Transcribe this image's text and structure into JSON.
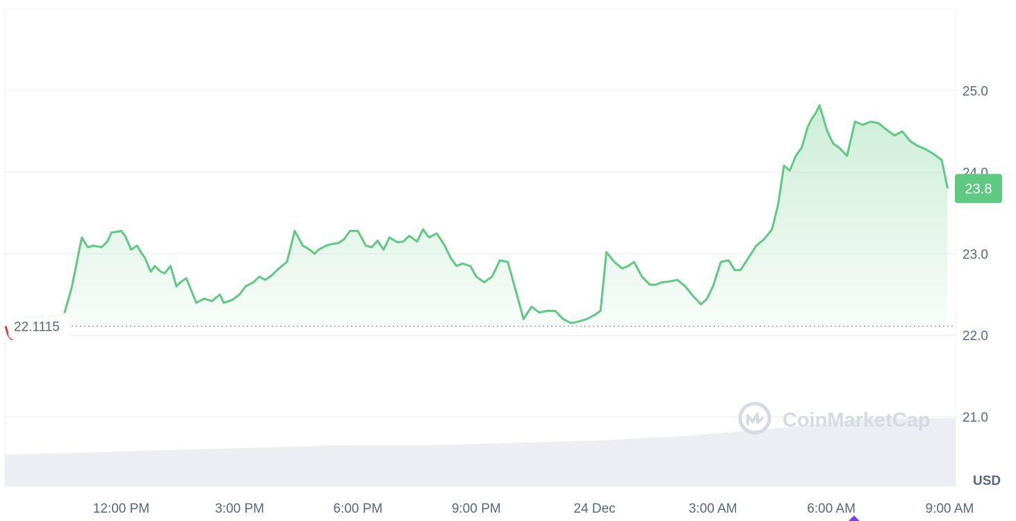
{
  "colors": {
    "up": "#5fc882",
    "down": "#ea3943",
    "grid": "#eff2f5",
    "volume": "#eceef3",
    "text": "#58667e",
    "badge": "#5fc882",
    "marker": "#7b3fe4"
  },
  "labels": {
    "currency": "USD",
    "open_value": "22.1115",
    "current_value": "23.8",
    "watermark": "CoinMarketCap"
  },
  "icons": {
    "watermark": "coinmarketcap-logo-icon",
    "marker": "event-diamond-icon"
  },
  "chart_data": {
    "type": "area",
    "title": "",
    "xlabel": "",
    "ylabel": "",
    "ylim": [
      20.15,
      26.0
    ],
    "yticks": [
      21.0,
      22.0,
      23.0,
      24.0,
      25.0
    ],
    "ytick_labels": [
      "21.0",
      "22.0",
      "23.0",
      "24.0",
      "25.0"
    ],
    "xrange": [
      -1.95,
      22.15
    ],
    "xticks": [
      1.0,
      4.0,
      7.0,
      10.0,
      13.0,
      16.0,
      19.0,
      22.0
    ],
    "xtick_labels": [
      "12:00 PM",
      "3:00 PM",
      "6:00 PM",
      "9:00 PM",
      "24 Dec",
      "3:00 AM",
      "6:00 AM",
      "9:00 AM"
    ],
    "open_price": 22.1115,
    "current_price": 23.8,
    "grid": true,
    "series": [
      {
        "hours": [
          -1.5,
          -0.45,
          -0.25,
          0.0,
          0.15,
          0.3,
          0.5,
          0.65,
          0.75,
          0.9,
          1.0,
          1.1,
          1.25,
          1.4,
          1.5,
          1.6,
          1.75,
          1.85,
          2.0,
          2.1,
          2.25,
          2.4,
          2.5,
          2.65,
          2.75,
          2.9,
          3.1,
          3.3,
          3.5,
          3.6,
          3.8,
          4.0,
          4.15,
          4.35,
          4.5,
          4.65,
          4.8,
          5.0,
          5.2,
          5.4,
          5.6,
          5.75,
          5.9,
          6.0,
          6.2,
          6.35,
          6.5,
          6.65,
          6.8,
          7.0,
          7.2,
          7.35,
          7.5,
          7.65,
          7.8,
          8.0,
          8.15,
          8.3,
          8.5,
          8.65,
          8.8,
          9.0,
          9.2,
          9.35,
          9.5,
          9.65,
          9.85,
          10.0,
          10.2,
          10.4,
          10.6,
          10.8,
          11.0,
          11.2,
          11.4,
          11.6,
          11.8,
          12.0,
          12.2,
          12.4,
          12.6,
          12.8,
          13.0,
          13.15,
          13.3,
          13.5,
          13.7,
          13.85,
          14.0,
          14.2,
          14.4,
          14.55,
          14.7,
          14.9,
          15.1,
          15.3,
          15.5,
          15.7,
          15.85,
          16.0,
          16.2,
          16.4,
          16.55,
          16.7,
          16.9,
          17.1,
          17.3,
          17.5,
          17.65,
          17.8,
          17.95,
          18.1,
          18.25,
          18.4,
          18.5,
          18.6,
          18.7,
          18.9,
          19.05,
          19.2,
          19.4,
          19.6,
          19.8,
          20.0,
          20.2,
          20.4,
          20.6,
          20.8,
          21.0,
          21.2,
          21.4,
          21.6,
          21.8,
          21.95
        ],
        "values": [
          22.22,
          22.25,
          22.6,
          23.2,
          23.08,
          23.1,
          23.08,
          23.15,
          23.26,
          23.27,
          23.28,
          23.22,
          23.05,
          23.1,
          23.02,
          22.95,
          22.78,
          22.85,
          22.78,
          22.76,
          22.85,
          22.6,
          22.65,
          22.7,
          22.58,
          22.4,
          22.45,
          22.42,
          22.5,
          22.4,
          22.43,
          22.5,
          22.6,
          22.65,
          22.72,
          22.68,
          22.73,
          22.82,
          22.9,
          23.28,
          23.1,
          23.06,
          23.0,
          23.05,
          23.1,
          23.12,
          23.13,
          23.18,
          23.28,
          23.28,
          23.1,
          23.08,
          23.16,
          23.05,
          23.2,
          23.14,
          23.15,
          23.22,
          23.15,
          23.3,
          23.2,
          23.25,
          23.1,
          22.95,
          22.85,
          22.88,
          22.85,
          22.72,
          22.65,
          22.72,
          22.92,
          22.9,
          22.55,
          22.2,
          22.35,
          22.28,
          22.3,
          22.3,
          22.2,
          22.15,
          22.17,
          22.2,
          22.25,
          22.3,
          23.02,
          22.9,
          22.82,
          22.85,
          22.9,
          22.72,
          22.62,
          22.62,
          22.65,
          22.66,
          22.68,
          22.6,
          22.48,
          22.38,
          22.45,
          22.6,
          22.9,
          22.92,
          22.8,
          22.8,
          22.95,
          23.1,
          23.18,
          23.3,
          23.6,
          24.08,
          24.02,
          24.2,
          24.3,
          24.55,
          24.65,
          24.72,
          24.82,
          24.5,
          24.35,
          24.3,
          24.2,
          24.62,
          24.58,
          24.62,
          24.6,
          24.52,
          24.45,
          24.5,
          24.38,
          24.32,
          24.28,
          24.22,
          24.15,
          23.8
        ]
      }
    ],
    "volume_fraction": [
      0.13,
      0.14,
      0.15,
      0.16,
      0.17,
      0.17,
      0.18,
      0.19,
      0.21,
      0.24,
      0.28,
      0.28
    ]
  }
}
